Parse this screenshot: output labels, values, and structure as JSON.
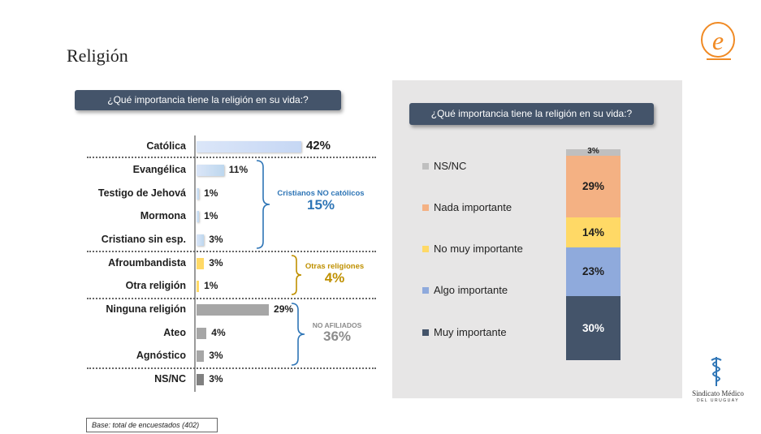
{
  "page_title": "Religión",
  "question": "¿Qué importancia tiene la religión en su vida:?",
  "base_note": "Base: total de encuestados (402)",
  "logo": {
    "letter": "e",
    "name": "equipos-logo-icon"
  },
  "sponsor": {
    "name": "Sindicato Médico",
    "sub": "DEL URUGUAY"
  },
  "colors": {
    "catolica": "#c6d7f4",
    "cristianos": "#bdd7ee",
    "otras": "#ffd966",
    "no_afiliados": "#a6a6a6",
    "nsnc": "#808080",
    "blue_text": "#2e75b6",
    "gold_text": "#bf9000",
    "grey_text": "#8c8c8c"
  },
  "groups": {
    "cristianos": {
      "label": "Cristianos NO católicos",
      "pct": "15%"
    },
    "otras": {
      "label": "Otras religiones",
      "pct": "4%"
    },
    "no_afiliados": {
      "label": "NO AFILIADOS",
      "pct": "36%"
    }
  },
  "chart_data": [
    {
      "type": "bar",
      "orientation": "horizontal",
      "title": "¿Qué importancia tiene la religión en su vida:?",
      "categories": [
        "Católica",
        "Evangélica",
        "Testigo de Jehová",
        "Mormona",
        "Cristiano sin esp.",
        "Afroumbandista",
        "Otra religión",
        "Ninguna religión",
        "Ateo",
        "Agnóstico",
        "NS/NC"
      ],
      "values": [
        42,
        11,
        1,
        1,
        3,
        3,
        1,
        29,
        4,
        3,
        3
      ],
      "labels": [
        "42%",
        "11%",
        "1%",
        "1%",
        "3%",
        "3%",
        "1%",
        "29%",
        "4%",
        "3%",
        "3%"
      ],
      "groups": [
        "catolica",
        "cristianos",
        "cristianos",
        "cristianos",
        "cristianos",
        "otras",
        "otras",
        "no_afiliados",
        "no_afiliados",
        "no_afiliados",
        "nsnc"
      ]
    },
    {
      "type": "bar",
      "stacked": true,
      "title": "¿Qué importancia tiene la religión en su vida:?",
      "series": [
        {
          "name": "Muy importante",
          "values": [
            30
          ],
          "label": "30%",
          "color": "#44546a"
        },
        {
          "name": "Algo importante",
          "values": [
            23
          ],
          "label": "23%",
          "color": "#8faadc"
        },
        {
          "name": "No muy importante",
          "values": [
            14
          ],
          "label": "14%",
          "color": "#ffd966"
        },
        {
          "name": "Nada importante",
          "values": [
            29
          ],
          "label": "29%",
          "color": "#f4b183"
        },
        {
          "name": "NS/NC",
          "values": [
            3
          ],
          "label": "3%",
          "color": "#bfbfbf"
        }
      ]
    }
  ]
}
